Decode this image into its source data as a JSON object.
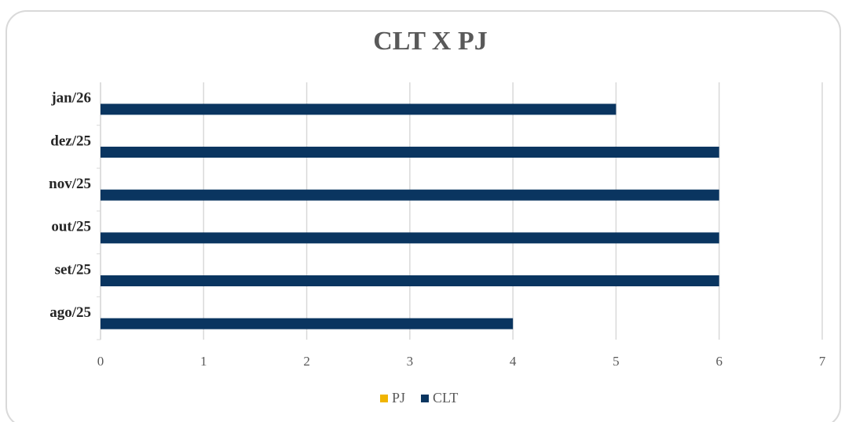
{
  "chart_data": {
    "type": "bar",
    "orientation": "horizontal",
    "title": "CLT X PJ",
    "categories": [
      "ago/25",
      "set/25",
      "out/25",
      "nov/25",
      "dez/25",
      "jan/26"
    ],
    "series": [
      {
        "name": "PJ",
        "color": "#f0b400",
        "values": [
          0,
          0,
          0,
          0,
          0,
          0
        ]
      },
      {
        "name": "CLT",
        "color": "#0a3560",
        "values": [
          4,
          6,
          6,
          6,
          6,
          5
        ]
      }
    ],
    "xlim": [
      0,
      7
    ],
    "xticks": [
      0,
      1,
      2,
      3,
      4,
      5,
      6,
      7
    ],
    "grid": true,
    "legend": "bottom"
  }
}
